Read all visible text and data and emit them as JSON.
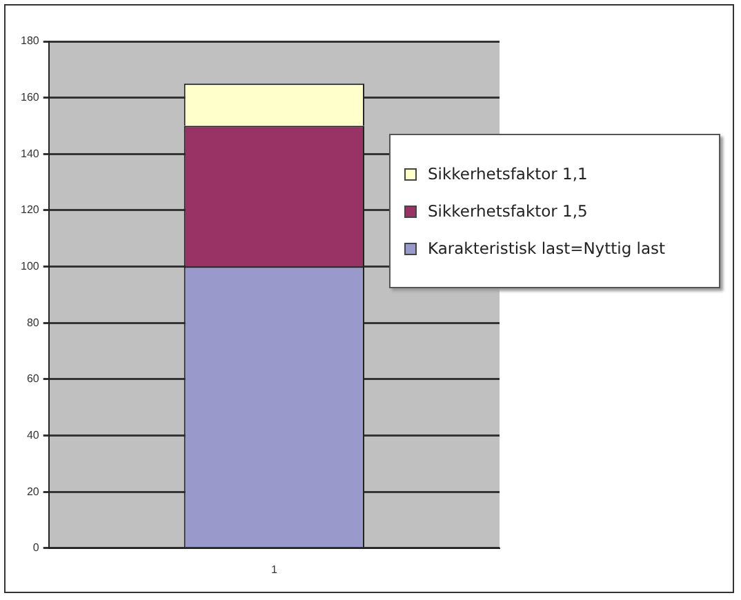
{
  "chart_data": {
    "type": "bar",
    "stacked": true,
    "categories": [
      "1"
    ],
    "series": [
      {
        "name": "Karakteristisk last=Nyttig last",
        "color": "#9999cc",
        "values": [
          100
        ]
      },
      {
        "name": "Sikkerhetsfaktor 1,5",
        "color": "#993366",
        "values": [
          50
        ]
      },
      {
        "name": "Sikkerhetsfaktor 1,1",
        "color": "#ffffcc",
        "values": [
          15
        ]
      }
    ],
    "ylim": [
      0,
      180
    ],
    "yticks": [
      0,
      20,
      40,
      60,
      80,
      100,
      120,
      140,
      160,
      180
    ],
    "grid": "y",
    "legend": "right"
  }
}
